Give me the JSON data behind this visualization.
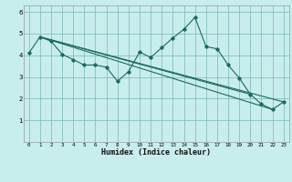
{
  "xlabel": "Humidex (Indice chaleur)",
  "bg_color": "#c8eded",
  "grid_color": "#7ab5b5",
  "line_color": "#1a6b5a",
  "xlim": [
    -0.5,
    23.5
  ],
  "ylim": [
    0,
    6.3
  ],
  "yticks": [
    1,
    2,
    3,
    4,
    5,
    6
  ],
  "xticks": [
    0,
    1,
    2,
    3,
    4,
    5,
    6,
    7,
    8,
    9,
    10,
    11,
    12,
    13,
    14,
    15,
    16,
    17,
    18,
    19,
    20,
    21,
    22,
    23
  ],
  "main_line_x": [
    0,
    1,
    2,
    3,
    4,
    5,
    6,
    7,
    8,
    9,
    10,
    11,
    12,
    13,
    14,
    15,
    16,
    17,
    18,
    19,
    20,
    21,
    22,
    23
  ],
  "main_line_y": [
    4.1,
    4.85,
    4.65,
    4.05,
    3.8,
    3.55,
    3.55,
    3.45,
    2.8,
    3.25,
    4.15,
    3.9,
    4.35,
    4.8,
    5.2,
    5.75,
    4.4,
    4.3,
    3.55,
    2.95,
    2.2,
    1.75,
    1.5,
    1.85
  ],
  "reg_line1_x": [
    1,
    20
  ],
  "reg_line1_y": [
    4.85,
    2.2
  ],
  "reg_line2_x": [
    1,
    22
  ],
  "reg_line2_y": [
    4.85,
    1.5
  ],
  "reg_line3_x": [
    1,
    23
  ],
  "reg_line3_y": [
    4.85,
    1.85
  ]
}
